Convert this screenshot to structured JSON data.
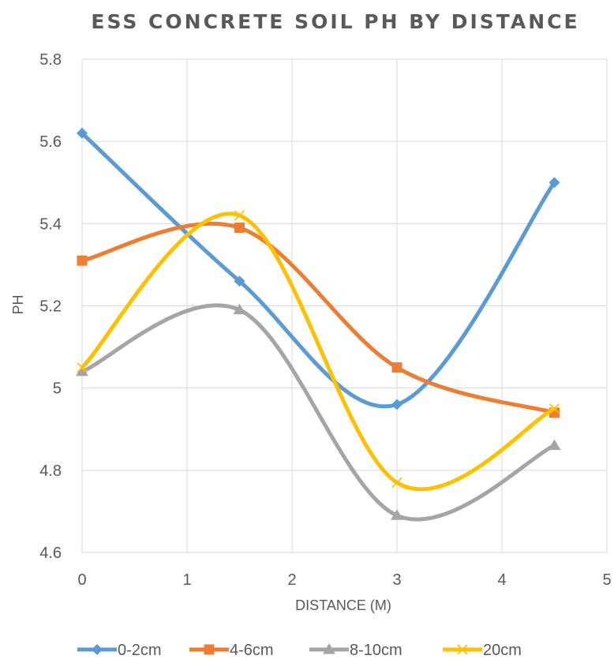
{
  "chart_data": {
    "type": "scatter",
    "title": "ESS CONCRETE SOIL PH BY DISTANCE",
    "xlabel": "DISTANCE (M)",
    "ylabel": "PH",
    "xlim": [
      0,
      5
    ],
    "ylim": [
      4.6,
      5.8
    ],
    "xticks": [
      "0",
      "1",
      "2",
      "3",
      "4",
      "5"
    ],
    "yticks": [
      "4.6",
      "4.8",
      "5",
      "5.2",
      "5.4",
      "5.6",
      "5.8"
    ],
    "grid": "vertical and horizontal gridlines",
    "legend_position": "bottom",
    "line_style": "smoothed lines with markers",
    "x": [
      0,
      1.5,
      3,
      4.5
    ],
    "series": [
      {
        "name": "0-2cm",
        "color": "#5B9BD5",
        "marker": "diamond",
        "values": [
          5.62,
          5.26,
          4.96,
          5.5
        ]
      },
      {
        "name": "4-6cm",
        "color": "#ED7D31",
        "marker": "square",
        "values": [
          5.31,
          5.39,
          5.05,
          4.94
        ]
      },
      {
        "name": "8-10cm",
        "color": "#A5A5A5",
        "marker": "triangle",
        "values": [
          5.04,
          5.19,
          4.69,
          4.86
        ]
      },
      {
        "name": "20cm",
        "color": "#FFC000",
        "marker": "x",
        "values": [
          5.05,
          5.42,
          4.77,
          4.95
        ]
      }
    ]
  }
}
